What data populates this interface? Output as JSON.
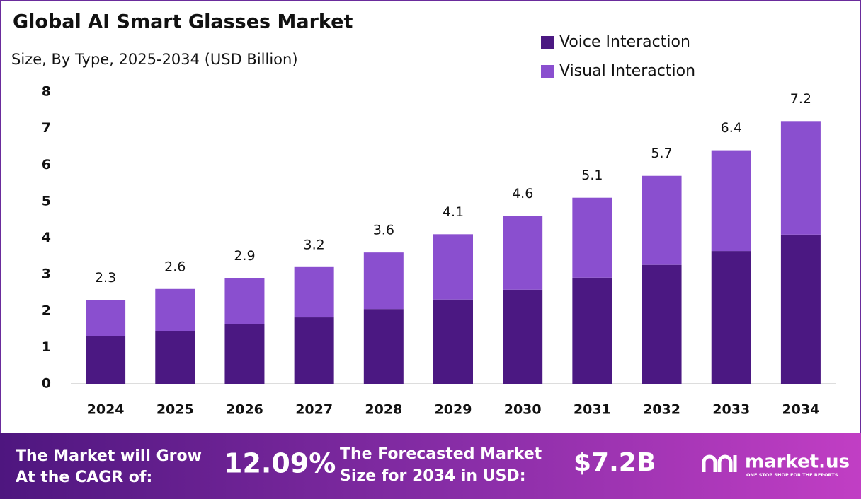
{
  "chart_data": {
    "type": "stacked-bar",
    "title": "Global AI Smart Glasses Market",
    "subtitle": "Size, By Type, 2025-2034 (USD Billion)",
    "categories": [
      "2024",
      "2025",
      "2026",
      "2027",
      "2028",
      "2029",
      "2030",
      "2031",
      "2032",
      "2033",
      "2034"
    ],
    "series": [
      {
        "name": "Voice Interaction",
        "color": "#4b1882",
        "values": [
          1.3,
          1.45,
          1.63,
          1.82,
          2.05,
          2.31,
          2.58,
          2.91,
          3.26,
          3.64,
          4.09
        ]
      },
      {
        "name": "Visual Interaction",
        "color": "#8a4fcf",
        "values": [
          1.0,
          1.15,
          1.27,
          1.38,
          1.55,
          1.79,
          2.02,
          2.19,
          2.44,
          2.76,
          3.11
        ]
      }
    ],
    "totals": [
      2.3,
      2.6,
      2.9,
      3.2,
      3.6,
      4.1,
      4.6,
      5.1,
      5.7,
      6.4,
      7.2
    ],
    "ylim": [
      0,
      8
    ],
    "yticks": [
      0,
      1,
      2,
      3,
      4,
      5,
      6,
      7,
      8
    ],
    "legend": "top-right"
  },
  "footer": {
    "cagr_label": [
      "The Market will Grow",
      "At the CAGR of:"
    ],
    "cagr_value": "12.09%",
    "forecast_label": [
      "The Forecasted Market",
      "Size for 2034 in USD:"
    ],
    "forecast_value": "$7.2B",
    "brand": "market.us",
    "tagline": "ONE STOP SHOP FOR THE REPORTS"
  }
}
